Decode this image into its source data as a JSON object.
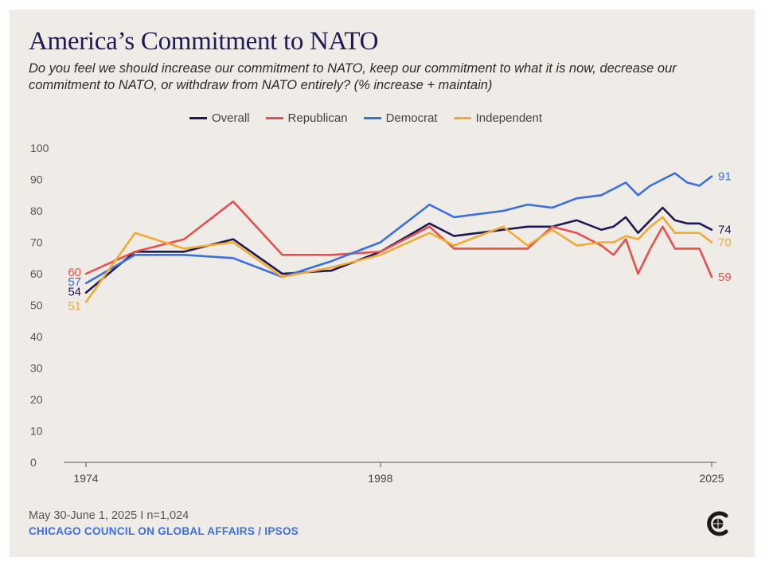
{
  "chart_data": {
    "type": "line",
    "title": "America’s Commitment to NATO",
    "subtitle": "Do you feel we should increase our commitment to NATO, keep our commitment to what it is now, decrease our commitment to NATO, or withdraw from NATO entirely? (% increase + maintain)",
    "x_tick_labels": [
      "1974",
      "1998",
      "2025"
    ],
    "x_ticks": [
      1974,
      1998,
      2025
    ],
    "xlim": [
      1974,
      2025
    ],
    "ylim": [
      0,
      100
    ],
    "y_ticks": [
      0,
      10,
      20,
      30,
      40,
      50,
      60,
      70,
      80,
      90,
      100
    ],
    "grid": false,
    "legend_position": "top-center",
    "series": [
      {
        "name": "Overall",
        "color": "#1f1a55",
        "x": [
          1974,
          1978,
          1982,
          1986,
          1990,
          1994,
          1998,
          2002,
          2004,
          2006,
          2008,
          2010,
          2012,
          2014,
          2016,
          2017,
          2018,
          2019,
          2020,
          2021,
          2022,
          2023,
          2024,
          2025
        ],
        "y": [
          54,
          67,
          67,
          71,
          60,
          61,
          67,
          76,
          72,
          73,
          74,
          75,
          75,
          77,
          74,
          75,
          78,
          73,
          77,
          81,
          77,
          76,
          76,
          74
        ],
        "end_label": "74",
        "start_label": "54"
      },
      {
        "name": "Republican",
        "color": "#e8504f",
        "x": [
          1974,
          1978,
          1982,
          1986,
          1990,
          1994,
          1998,
          2002,
          2004,
          2006,
          2008,
          2010,
          2012,
          2014,
          2016,
          2017,
          2018,
          2019,
          2020,
          2021,
          2022,
          2023,
          2024,
          2025
        ],
        "y": [
          60,
          67,
          71,
          83,
          66,
          66,
          67,
          75,
          68,
          68,
          68,
          68,
          75,
          73,
          69,
          66,
          71,
          60,
          68,
          75,
          68,
          68,
          68,
          59
        ],
        "end_label": "59",
        "start_label": "60"
      },
      {
        "name": "Democrat",
        "color": "#3b6fe0",
        "x": [
          1974,
          1978,
          1982,
          1986,
          1990,
          1994,
          1998,
          2002,
          2004,
          2006,
          2008,
          2010,
          2012,
          2014,
          2016,
          2017,
          2018,
          2019,
          2020,
          2021,
          2022,
          2023,
          2024,
          2025
        ],
        "y": [
          57,
          66,
          66,
          65,
          59,
          64,
          70,
          82,
          78,
          79,
          80,
          82,
          81,
          84,
          85,
          87,
          89,
          85,
          88,
          90,
          92,
          89,
          88,
          91
        ],
        "end_label": "91",
        "start_label": "57"
      },
      {
        "name": "Independent",
        "color": "#f2aa33",
        "x": [
          1974,
          1978,
          1982,
          1986,
          1990,
          1994,
          1998,
          2002,
          2004,
          2006,
          2008,
          2010,
          2012,
          2014,
          2016,
          2017,
          2018,
          2019,
          2020,
          2021,
          2022,
          2023,
          2024,
          2025
        ],
        "y": [
          51,
          73,
          68,
          70,
          59,
          62,
          66,
          73,
          69,
          72,
          75,
          69,
          74,
          69,
          70,
          70,
          72,
          71,
          75,
          78,
          73,
          73,
          73,
          70
        ],
        "end_label": "70",
        "start_label": "51"
      }
    ]
  },
  "footer": {
    "date_line": "May 30-June 1, 2025 I n=1,024",
    "source": "CHICAGO COUNCIL ON GLOBAL AFFAIRS / IPSOS"
  },
  "logo": {
    "icon": "chicago-council-c-globe-icon",
    "color": "#1a1a1a"
  }
}
